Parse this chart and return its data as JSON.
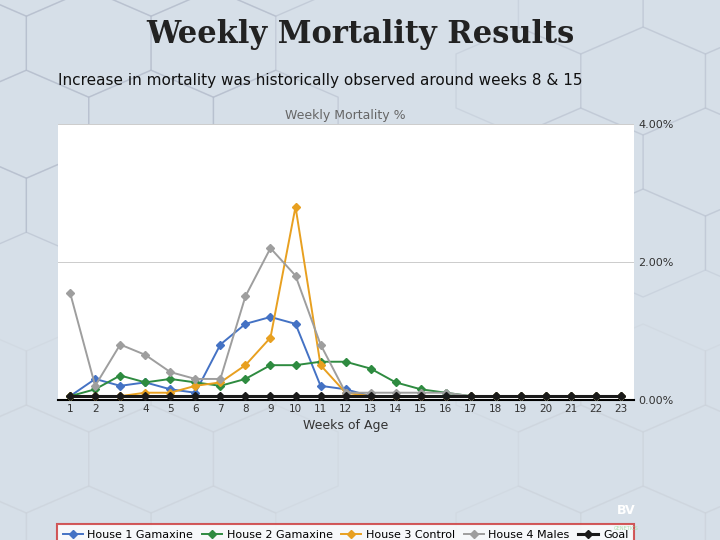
{
  "title": "Weekly Mortality Results",
  "subtitle": "Increase in mortality was historically observed around weeks 8 & 15",
  "chart_title": "Weekly Mortality %",
  "xlabel": "Weeks of Age",
  "weeks": [
    1,
    2,
    3,
    4,
    5,
    6,
    7,
    8,
    9,
    10,
    11,
    12,
    13,
    14,
    15,
    16,
    17,
    18,
    19,
    20,
    21,
    22,
    23
  ],
  "house1_gamaxine": [
    0.05,
    0.3,
    0.2,
    0.25,
    0.15,
    0.1,
    0.8,
    1.1,
    1.2,
    1.1,
    0.2,
    0.15,
    0.05,
    0.05,
    0.05,
    0.05,
    0.05,
    0.05,
    0.05,
    0.05,
    0.05,
    0.05,
    0.05
  ],
  "house2_gamaxine": [
    0.05,
    0.15,
    0.35,
    0.25,
    0.3,
    0.25,
    0.2,
    0.3,
    0.5,
    0.5,
    0.55,
    0.55,
    0.45,
    0.25,
    0.15,
    0.1,
    0.05,
    0.05,
    0.05,
    0.05,
    0.05,
    0.05,
    0.05
  ],
  "house3_control": [
    0.05,
    0.05,
    0.05,
    0.1,
    0.1,
    0.2,
    0.25,
    0.5,
    0.9,
    2.8,
    0.5,
    0.1,
    0.05,
    0.05,
    0.05,
    0.05,
    0.05,
    0.05,
    0.05,
    0.05,
    0.05,
    0.05,
    0.05
  ],
  "house4_males": [
    1.55,
    0.2,
    0.8,
    0.65,
    0.4,
    0.3,
    0.3,
    1.5,
    2.2,
    1.8,
    0.8,
    0.1,
    0.1,
    0.1,
    0.1,
    0.1,
    0.05,
    0.05,
    0.05,
    0.05,
    0.05,
    0.05,
    0.05
  ],
  "goal": [
    0.05,
    0.05,
    0.05,
    0.05,
    0.05,
    0.05,
    0.05,
    0.05,
    0.05,
    0.05,
    0.05,
    0.05,
    0.05,
    0.05,
    0.05,
    0.05,
    0.05,
    0.05,
    0.05,
    0.05,
    0.05,
    0.05,
    0.05
  ],
  "color_house1": "#4472C4",
  "color_house2": "#2E8B40",
  "color_house3": "#E8A020",
  "color_house4": "#9E9E9E",
  "color_goal": "#1a1a1a",
  "ylim": [
    0,
    4.0
  ],
  "bg_color": "#d6dfe8",
  "plot_bg": "#ffffff",
  "title_fontsize": 22,
  "subtitle_fontsize": 11,
  "chart_title_fontsize": 9,
  "legend_fontsize": 8
}
